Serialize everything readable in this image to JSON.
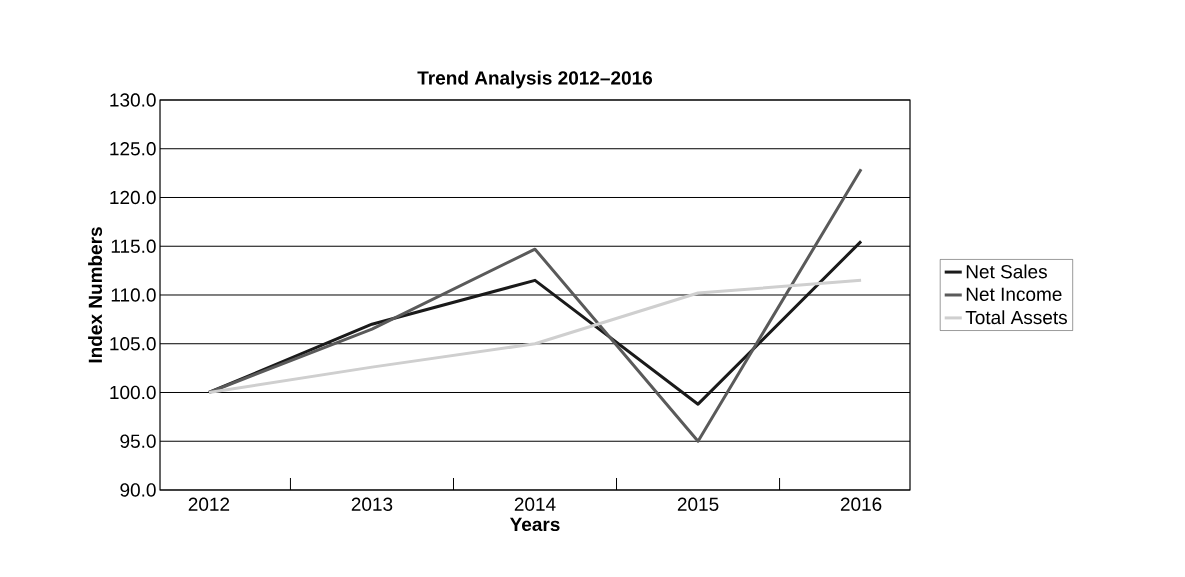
{
  "chart_data": {
    "type": "line",
    "title": "Trend Analysis 2012–2016",
    "xlabel": "Years",
    "ylabel": "Index Numbers",
    "categories": [
      "2012",
      "2013",
      "2014",
      "2015",
      "2016"
    ],
    "series": [
      {
        "name": "Net Sales",
        "color": "#1a1a1a",
        "values": [
          100,
          107,
          111.5,
          98.8,
          115.5
        ]
      },
      {
        "name": "Net Income",
        "color": "#5a5a5a",
        "values": [
          100,
          106.5,
          114.7,
          95,
          122.9
        ]
      },
      {
        "name": "Total Assets",
        "color": "#cfcfcf",
        "values": [
          100,
          102.6,
          105,
          110.2,
          111.5
        ]
      }
    ],
    "ylim": [
      90,
      130
    ],
    "yticks": [
      {
        "value": 90,
        "label": "90.0"
      },
      {
        "value": 95,
        "label": "95.0"
      },
      {
        "value": 100,
        "label": "100.0"
      },
      {
        "value": 105,
        "label": "105.0"
      },
      {
        "value": 110,
        "label": "110.0"
      },
      {
        "value": 115,
        "label": "115.0"
      },
      {
        "value": 120,
        "label": "120.0"
      },
      {
        "value": 125,
        "label": "125.0"
      },
      {
        "value": 130,
        "label": "130.0"
      }
    ],
    "grid": "y",
    "legend": "right",
    "marker": "none",
    "line_style": "solid"
  }
}
